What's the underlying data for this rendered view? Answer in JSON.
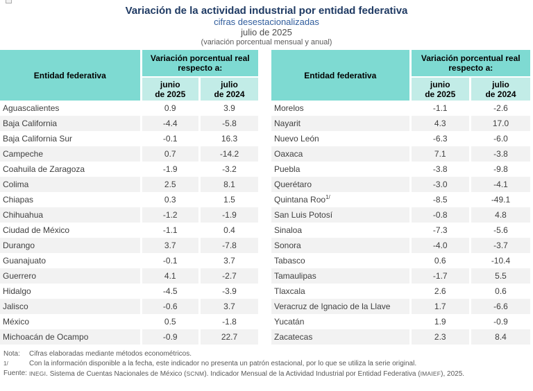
{
  "page": {
    "title": "Variación de la actividad industrial por entidad federativa",
    "subtitle1": "cifras desestacionalizadas",
    "subtitle2": "julio de 2025",
    "subtitle3": "(variación porcentual mensual y anual)"
  },
  "colors": {
    "header_teal": "#7EDAD2",
    "subheader_teal": "#C2ECE7",
    "row_stripe": "#F2F2F2",
    "title_navy": "#1F3A63",
    "subtitle_blue": "#2F5C9C"
  },
  "table_header": {
    "entity_label": "Entidad federativa",
    "group_label": "Variación porcentual real respecto a:",
    "col1_line1": "junio",
    "col1_line2": "de 2025",
    "col2_line1": "julio",
    "col2_line2": "de 2024"
  },
  "tables": [
    {
      "rows": [
        {
          "name": "Aguascalientes",
          "jun": "0.9",
          "jul": "3.9"
        },
        {
          "name": "Baja California",
          "jun": "-4.4",
          "jul": "-5.8"
        },
        {
          "name": "Baja California Sur",
          "jun": "-0.1",
          "jul": "16.3"
        },
        {
          "name": "Campeche",
          "jun": "0.7",
          "jul": "-14.2"
        },
        {
          "name": "Coahuila de Zaragoza",
          "jun": "-1.9",
          "jul": "-3.2"
        },
        {
          "name": "Colima",
          "jun": "2.5",
          "jul": "8.1"
        },
        {
          "name": "Chiapas",
          "jun": "0.3",
          "jul": "1.5"
        },
        {
          "name": "Chihuahua",
          "jun": "-1.2",
          "jul": "-1.9"
        },
        {
          "name": "Ciudad de México",
          "jun": "-1.1",
          "jul": "0.4"
        },
        {
          "name": "Durango",
          "jun": "3.7",
          "jul": "-7.8"
        },
        {
          "name": "Guanajuato",
          "jun": "-0.1",
          "jul": "3.7"
        },
        {
          "name": "Guerrero",
          "jun": "4.1",
          "jul": "-2.7"
        },
        {
          "name": "Hidalgo",
          "jun": "-4.5",
          "jul": "-3.9"
        },
        {
          "name": "Jalisco",
          "jun": "-0.6",
          "jul": "3.7"
        },
        {
          "name": "México",
          "jun": "0.5",
          "jul": "-1.8"
        },
        {
          "name": "Michoacán de Ocampo",
          "jun": "-0.9",
          "jul": "22.7"
        }
      ]
    },
    {
      "rows": [
        {
          "name": "Morelos",
          "jun": "-1.1",
          "jul": "-2.6"
        },
        {
          "name": "Nayarit",
          "jun": "4.3",
          "jul": "17.0"
        },
        {
          "name": "Nuevo León",
          "jun": "-6.3",
          "jul": "-6.0"
        },
        {
          "name": "Oaxaca",
          "jun": "7.1",
          "jul": "-3.8"
        },
        {
          "name": "Puebla",
          "jun": "-3.8",
          "jul": "-9.8"
        },
        {
          "name": "Querétaro",
          "jun": "-3.0",
          "jul": "-4.1"
        },
        {
          "name": "Quintana Roo",
          "sup": "1/",
          "jun": "-8.5",
          "jul": "-49.1"
        },
        {
          "name": "San Luis Potosí",
          "jun": "-0.8",
          "jul": "4.8"
        },
        {
          "name": "Sinaloa",
          "jun": "-7.3",
          "jul": "-5.6"
        },
        {
          "name": "Sonora",
          "jun": "-4.0",
          "jul": "-3.7"
        },
        {
          "name": "Tabasco",
          "jun": "0.6",
          "jul": "-10.4"
        },
        {
          "name": "Tamaulipas",
          "jun": "-1.7",
          "jul": "5.5"
        },
        {
          "name": "Tlaxcala",
          "jun": "2.6",
          "jul": "0.6"
        },
        {
          "name": "Veracruz de Ignacio de la Llave",
          "jun": "1.7",
          "jul": "-6.6"
        },
        {
          "name": "Yucatán",
          "jun": "1.9",
          "jul": "-0.9"
        },
        {
          "name": "Zacatecas",
          "jun": "2.3",
          "jul": "8.4"
        }
      ]
    }
  ],
  "footer": {
    "nota_label": "Nota:",
    "nota_text": "Cifras elaboradas mediante métodos econométricos.",
    "fn_label": "1/",
    "fn_text": "Con la información disponible a la fecha, este indicador no presenta un patrón estacional, por lo que se utiliza la serie original.",
    "fuente_label": "Fuente:",
    "fuente_parts": [
      "INEGI",
      ". Sistema de Cuentas Nacionales de México (",
      "SCNM",
      "). Indicador Mensual de la Actividad Industrial por Entidad Federativa (",
      "IMAIEF",
      "), 2025."
    ]
  }
}
